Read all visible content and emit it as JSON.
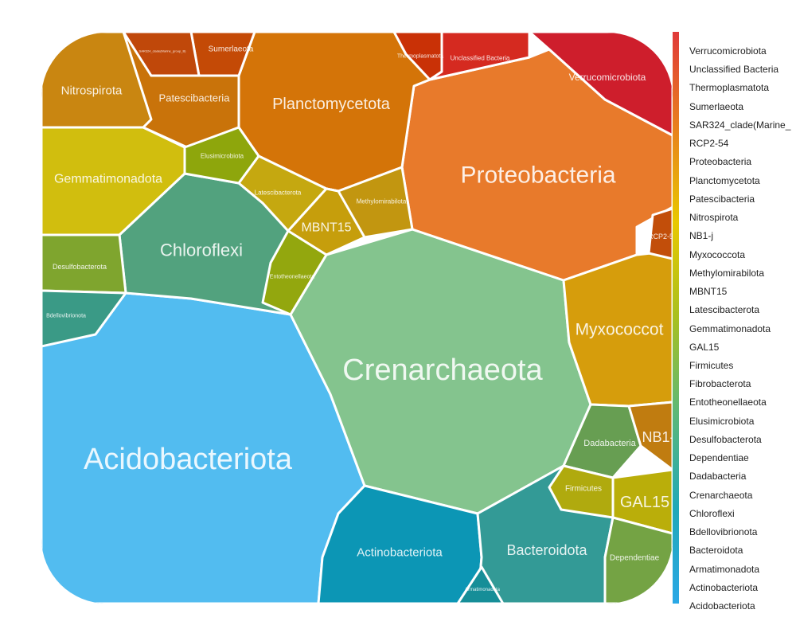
{
  "chart_data": {
    "type": "voronoi-treemap",
    "cells": [
      {
        "name": "Acidobacteriota",
        "color": "#52BCF0"
      },
      {
        "name": "Crenarchaeota",
        "color": "#84C48E"
      },
      {
        "name": "Proteobacteria",
        "color": "#E87A2B"
      },
      {
        "name": "Chloroflexi",
        "color": "#52A27E"
      },
      {
        "name": "Planctomycetota",
        "color": "#D47408"
      },
      {
        "name": "Gemmatimonadota",
        "color": "#D1BE0E"
      },
      {
        "name": "Actinobacteriota",
        "color": "#0C96B5"
      },
      {
        "name": "Bacteroidota",
        "color": "#339A96"
      },
      {
        "name": "Myxococcota",
        "color": "#D69D0C"
      },
      {
        "name": "Nitrospirota",
        "color": "#C98611"
      },
      {
        "name": "Verrucomicrobiota",
        "color": "#CE1E2C"
      },
      {
        "name": "Patescibacteria",
        "color": "#C9730A"
      },
      {
        "name": "Sumerlaeota",
        "color": "#C44A06"
      },
      {
        "name": "SAR324_clade(Marine_group_B)",
        "color": "#C0480A"
      },
      {
        "name": "Thermoplasmatota",
        "color": "#C93106"
      },
      {
        "name": "Unclassified Bacteria",
        "color": "#D52A20"
      },
      {
        "name": "Elusimicrobiota",
        "color": "#8EA60C"
      },
      {
        "name": "Latescibacterota",
        "color": "#C5A810"
      },
      {
        "name": "Methylomirabilota",
        "color": "#C29610"
      },
      {
        "name": "MBNT15",
        "color": "#C69E0C"
      },
      {
        "name": "Entotheonellaeota",
        "color": "#93A70E"
      },
      {
        "name": "Desulfobacterota",
        "color": "#7FA52E"
      },
      {
        "name": "Bdellovibrionota",
        "color": "#3A9A86"
      },
      {
        "name": "Dadabacteria",
        "color": "#679E52"
      },
      {
        "name": "Firmicutes",
        "color": "#B0AA0E"
      },
      {
        "name": "GAL15",
        "color": "#BAAE0A"
      },
      {
        "name": "Dependentiae",
        "color": "#74A344"
      },
      {
        "name": "NB1-j",
        "color": "#C07C10"
      },
      {
        "name": "RCP2-54",
        "color": "#C24E0A"
      },
      {
        "name": "Armatimonadota",
        "color": "#168E98"
      }
    ],
    "labels": {
      "Acidobacteriota": "Acidobacteriota",
      "Crenarchaeota": "Crenarchaeota",
      "Proteobacteria": "Proteobacteria",
      "Chloroflexi": "Chloroflexi",
      "Planctomycetota": "Planctomycetota",
      "Gemmatimonadota": "Gemmatimonadota",
      "Actinobacteriota": "Actinobacteriota",
      "Bacteroidota": "Bacteroidota",
      "Myxococcota": "Myxococcot",
      "Nitrospirota": "Nitrospirota",
      "Verrucomicrobiota": "Verrucomicrobiota",
      "Patescibacteria": "Patescibacteria",
      "Sumerlaeota": "Sumerlaeota",
      "SAR324_clade(Marine_group_B)": "SAR324_clade(Marine_group_B)",
      "Thermoplasmatota": "Thermoplasmatota",
      "Unclassified Bacteria": "Unclassified Bacteria",
      "Elusimicrobiota": "Elusimicrobiota",
      "Latescibacterota": "Latescibacterota",
      "Methylomirabilota": "Methylomirabilota",
      "MBNT15": "MBNT15",
      "Entotheonellaeota": "Entotheonellaeota",
      "Desulfobacterota": "Desulfobacterota",
      "Bdellovibrionota": "Bdellovibrionota",
      "Dadabacteria": "Dadabacteria",
      "Firmicutes": "Firmicutes",
      "GAL15": "GAL15",
      "Dependentiae": "Dependentiae",
      "NB1-j": "NB1-",
      "RCP2-54": "RCP2-5",
      "Armatimonadota": "Armatimonadota"
    },
    "legend": {
      "placement": "right",
      "entries": [
        "Verrucomicrobiota",
        "Unclassified Bacteria",
        "Thermoplasmatota",
        "Sumerlaeota",
        "SAR324_clade(Marine_",
        "RCP2-54",
        "Proteobacteria",
        "Planctomycetota",
        "Patescibacteria",
        "Nitrospirota",
        "NB1-j",
        "Myxococcota",
        "Methylomirabilota",
        "MBNT15",
        "Latescibacterota",
        "Gemmatimonadota",
        "GAL15",
        "Firmicutes",
        "Fibrobacterota",
        "Entotheonellaeota",
        "Elusimicrobiota",
        "Desulfobacterota",
        "Dependentiae",
        "Dadabacteria",
        "Crenarchaeota",
        "Chloroflexi",
        "Bdellovibrionota",
        "Bacteroidota",
        "Armatimonadota",
        "Actinobacteriota",
        "Acidobacteriota"
      ],
      "gradient": [
        "#E03A3A",
        "#E8801E",
        "#E8C800",
        "#A8C020",
        "#5CB878",
        "#20A8B8",
        "#2AA8E6"
      ]
    }
  }
}
